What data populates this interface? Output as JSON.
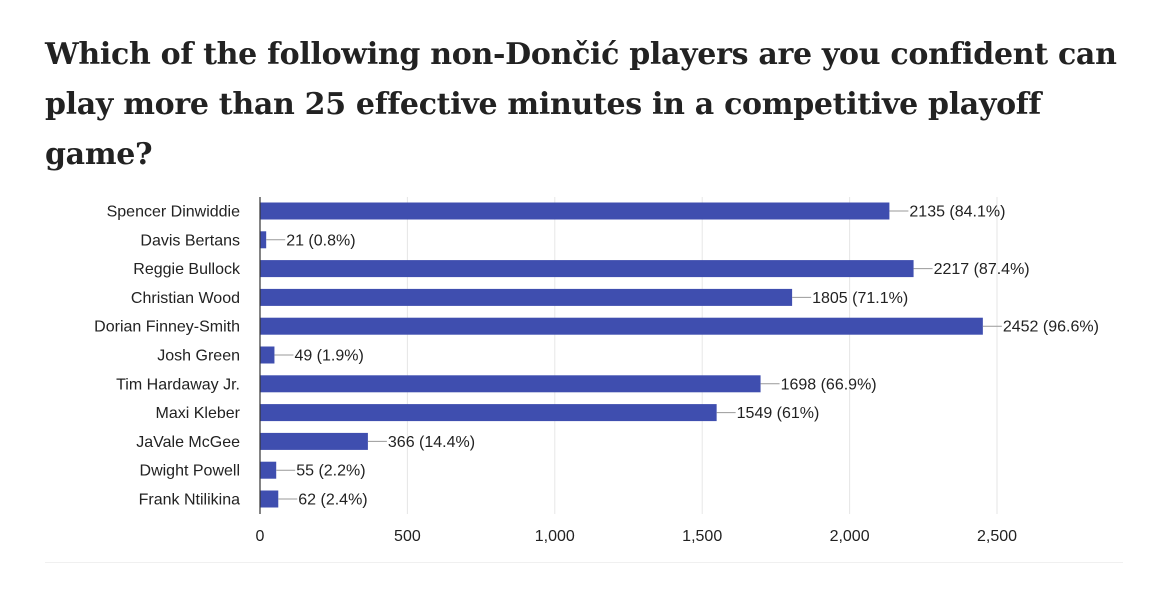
{
  "question": {
    "title": "Which of the following non-Dončić players are you confident can play more than 25 effective minutes in a competitive playoff game?"
  },
  "colors": {
    "bar": "#3f4eaf",
    "axis": "#333333",
    "grid": "#e6e6e6",
    "text": "#222222"
  },
  "chart_data": {
    "type": "bar",
    "orientation": "horizontal",
    "title": "Which of the following non-Dončić players are you confident can play more than 25 effective minutes in a competitive playoff game?",
    "categories": [
      "Spencer Dinwiddie",
      "Davis Bertans",
      "Reggie Bullock",
      "Christian Wood",
      "Dorian Finney-Smith",
      "Josh Green",
      "Tim Hardaway Jr.",
      "Maxi Kleber",
      "JaVale McGee",
      "Dwight Powell",
      "Frank Ntilikina"
    ],
    "values": [
      2135,
      21,
      2217,
      1805,
      2452,
      49,
      1698,
      1549,
      366,
      55,
      62
    ],
    "data_labels": [
      "2135 (84.1%)",
      "21 (0.8%)",
      "2217 (87.4%)",
      "1805 (71.1%)",
      "2452 (96.6%)",
      "49 (1.9%)",
      "1698 (66.9%)",
      "1549 (61%)",
      "366 (14.4%)",
      "55 (2.2%)",
      "62 (2.4%)"
    ],
    "xlim": [
      0,
      2500
    ],
    "x_ticks": [
      0,
      500,
      1000,
      1500,
      2000,
      2500
    ],
    "x_tick_labels": [
      "0",
      "500",
      "1,000",
      "1,500",
      "2,000",
      "2,500"
    ],
    "grid": true,
    "legend": "none"
  }
}
